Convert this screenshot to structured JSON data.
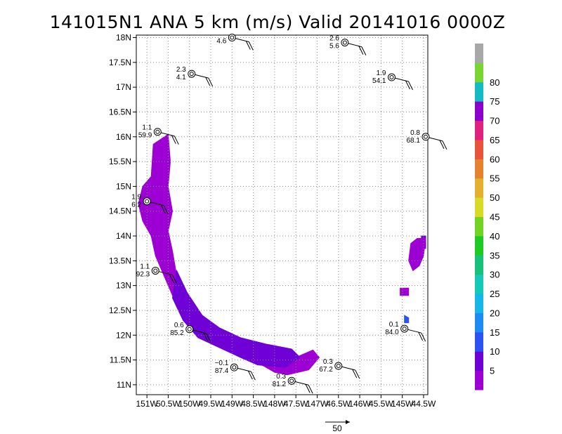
{
  "title": "141015N1 ANA 5 km (m/s) Valid 20141016 0000Z",
  "chart_data": {
    "type": "heatmap",
    "title": "141015N1 ANA 5 km (m/s) Valid 20141016 0000Z",
    "x_ticks": [
      "151W",
      "50.5W",
      "150W",
      "49.5W",
      "149W",
      "48.5W",
      "148W",
      "47.5W",
      "147W",
      "46.5W",
      "146W",
      "45.5W",
      "145W",
      "44.5W"
    ],
    "x_tick_values": [
      151.0,
      150.5,
      150.0,
      149.5,
      149.0,
      148.5,
      148.0,
      147.5,
      147.0,
      146.5,
      146.0,
      145.5,
      145.0,
      144.5
    ],
    "y_ticks": [
      "11N",
      "11.5N",
      "12N",
      "12.5N",
      "13N",
      "13.5N",
      "14N",
      "14.5N",
      "15N",
      "15.5N",
      "16N",
      "16.5N",
      "17N",
      "17.5N",
      "18N"
    ],
    "y_tick_values": [
      11.0,
      11.5,
      12.0,
      12.5,
      13.0,
      13.5,
      14.0,
      14.5,
      15.0,
      15.5,
      16.0,
      16.5,
      17.0,
      17.5,
      18.0
    ],
    "xlim": [
      151.25,
      144.4
    ],
    "ylim": [
      10.8,
      18.05
    ],
    "grid": true,
    "colorbar": {
      "labels": [
        "5",
        "10",
        "15",
        "20",
        "25",
        "30",
        "35",
        "40",
        "45",
        "50",
        "55",
        "60",
        "65",
        "70",
        "75",
        "80"
      ],
      "colors": [
        "#9d00d2",
        "#6f00d6",
        "#2b52f2",
        "#1c8cf4",
        "#15b7e8",
        "#14c9b8",
        "#16c27a",
        "#1ccc24",
        "#73d322",
        "#d8da25",
        "#e3b12d",
        "#e4822e",
        "#e8533c",
        "#e0217e",
        "#8c00cc",
        "#13bbc3",
        "#7ad532",
        "#a8a8a8"
      ]
    },
    "stations": [
      {
        "lon": 149.0,
        "lat": 18.0,
        "top": "",
        "bottom": "4.6"
      },
      {
        "lon": 146.35,
        "lat": 17.9,
        "top": "2.6",
        "bottom": "5.6"
      },
      {
        "lon": 149.95,
        "lat": 17.27,
        "top": "2.3",
        "bottom": "4.1"
      },
      {
        "lon": 145.25,
        "lat": 17.2,
        "top": "1.9",
        "bottom": "54.1"
      },
      {
        "lon": 150.75,
        "lat": 16.1,
        "top": "1.1",
        "bottom": "59.9"
      },
      {
        "lon": 144.45,
        "lat": 16.0,
        "top": "0.8",
        "bottom": "68.1"
      },
      {
        "lon": 151.0,
        "lat": 14.7,
        "top": "1.9",
        "bottom": "6.2"
      },
      {
        "lon": 150.8,
        "lat": 13.3,
        "top": "1.1",
        "bottom": "92.3"
      },
      {
        "lon": 150.0,
        "lat": 12.12,
        "top": "0.6",
        "bottom": "85.2"
      },
      {
        "lon": 144.95,
        "lat": 12.13,
        "top": "0.1",
        "bottom": "84.0"
      },
      {
        "lon": 148.95,
        "lat": 11.35,
        "top": "−0.1",
        "bottom": "87.4"
      },
      {
        "lon": 146.5,
        "lat": 11.38,
        "top": "0.3",
        "bottom": "67.2"
      },
      {
        "lon": 147.6,
        "lat": 11.08,
        "top": "0.3",
        "bottom": "81.2"
      }
    ],
    "wind_regions": [
      {
        "category": "5",
        "polygon": [
          [
            150.5,
            16.05
          ],
          [
            150.85,
            15.85
          ],
          [
            150.9,
            15.2
          ],
          [
            151.1,
            15.0
          ],
          [
            151.2,
            14.65
          ],
          [
            151.1,
            14.3
          ],
          [
            150.9,
            14.0
          ],
          [
            150.8,
            13.6
          ],
          [
            150.6,
            13.2
          ],
          [
            150.4,
            12.8
          ],
          [
            150.0,
            12.3
          ],
          [
            149.6,
            11.95
          ],
          [
            149.0,
            11.65
          ],
          [
            148.5,
            11.5
          ],
          [
            148.0,
            11.25
          ],
          [
            147.7,
            11.2
          ],
          [
            147.2,
            11.3
          ],
          [
            146.95,
            11.55
          ],
          [
            147.1,
            11.7
          ],
          [
            147.5,
            11.55
          ],
          [
            148.0,
            11.7
          ],
          [
            148.6,
            11.85
          ],
          [
            149.2,
            12.05
          ],
          [
            149.6,
            12.3
          ],
          [
            150.0,
            12.7
          ],
          [
            150.3,
            13.2
          ],
          [
            150.4,
            13.7
          ],
          [
            150.5,
            14.1
          ],
          [
            150.4,
            14.5
          ],
          [
            150.5,
            15.0
          ],
          [
            150.45,
            15.5
          ]
        ]
      },
      {
        "category": "10",
        "polygon": [
          [
            150.3,
            13.3
          ],
          [
            150.05,
            12.85
          ],
          [
            149.7,
            12.4
          ],
          [
            149.3,
            12.15
          ],
          [
            148.8,
            11.95
          ],
          [
            148.2,
            11.82
          ],
          [
            147.6,
            11.72
          ],
          [
            147.4,
            11.55
          ],
          [
            147.75,
            11.35
          ],
          [
            148.4,
            11.4
          ],
          [
            148.8,
            11.55
          ],
          [
            149.3,
            11.75
          ],
          [
            149.8,
            11.95
          ],
          [
            150.15,
            12.3
          ],
          [
            150.4,
            12.75
          ]
        ]
      },
      {
        "category": "15",
        "polygon": [
          [
            144.95,
            12.4
          ],
          [
            144.85,
            12.35
          ],
          [
            144.85,
            12.25
          ],
          [
            144.95,
            12.25
          ]
        ]
      },
      {
        "category": "10",
        "polygon": [
          [
            144.55,
            14.0
          ],
          [
            144.45,
            14.0
          ],
          [
            144.45,
            13.75
          ],
          [
            144.55,
            13.75
          ]
        ]
      },
      {
        "category": "5",
        "polygon": [
          [
            144.65,
            13.95
          ],
          [
            144.45,
            13.95
          ],
          [
            144.5,
            13.6
          ],
          [
            144.6,
            13.4
          ],
          [
            144.75,
            13.3
          ],
          [
            144.85,
            13.5
          ],
          [
            144.8,
            13.85
          ]
        ]
      },
      {
        "category": "5",
        "polygon": [
          [
            145.05,
            12.95
          ],
          [
            144.85,
            12.95
          ],
          [
            144.85,
            12.8
          ],
          [
            145.05,
            12.8
          ]
        ]
      }
    ],
    "vector_scale_label": "50"
  }
}
